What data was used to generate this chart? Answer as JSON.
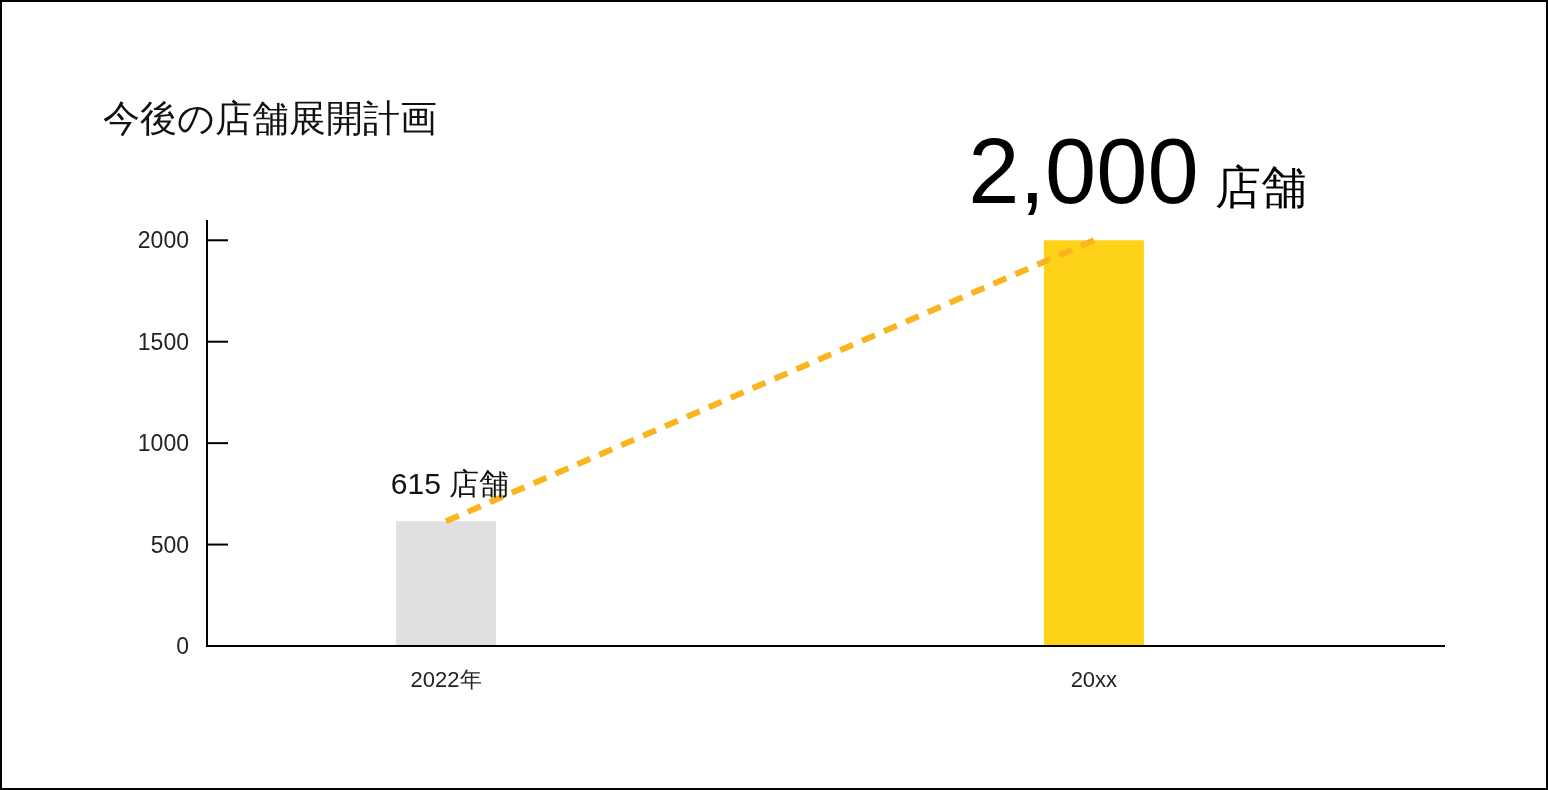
{
  "chart_data": {
    "type": "bar",
    "title": "今後の店舗展開計画",
    "categories": [
      "2022年",
      "20xx"
    ],
    "series": [
      {
        "colors": [
          "#e0e0e0",
          "#ffd21a"
        ],
        "values": [
          615,
          2000
        ],
        "value_labels": [
          "615 店舗",
          "2,000 店舗"
        ]
      },
      {
        "type": "line",
        "color": "#f9b41e",
        "line_style": "dashed",
        "values": [
          615,
          2000
        ]
      }
    ],
    "ylim": [
      0,
      2100
    ],
    "yticks": [
      0,
      500,
      1000,
      1500,
      2000
    ]
  }
}
